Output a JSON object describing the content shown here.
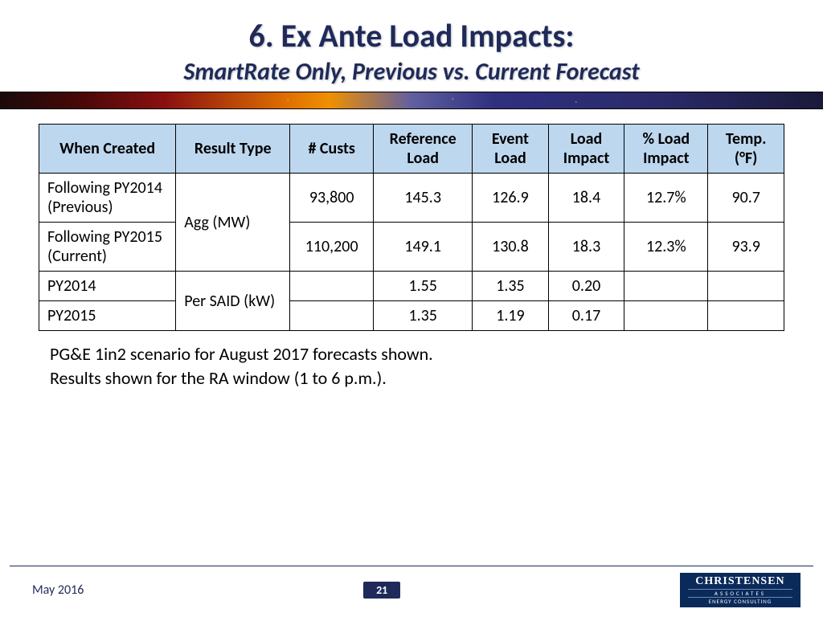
{
  "title": {
    "main": "6. Ex Ante Load Impacts:",
    "sub": "SmartRate Only, Previous vs. Current Forecast"
  },
  "colors": {
    "heading": "#1f2a5a",
    "table_header_bg": "#bdd7ee",
    "border": "#000000",
    "footer_bg": "#1f2a5a",
    "logo_bg": "#0a2a5a"
  },
  "table": {
    "columns": [
      "When Created",
      "Result Type",
      "# Custs",
      "Reference Load",
      "Event Load",
      "Load Impact",
      "% Load Impact",
      "Temp. (°F)"
    ],
    "rows": [
      {
        "when": "Following PY2014 (Previous)",
        "result": "Agg (MW)",
        "custs": "93,800",
        "ref": "145.3",
        "event": "126.9",
        "impact": "18.4",
        "pct": "12.7%",
        "temp": "90.7",
        "merge_result": 2
      },
      {
        "when": "Following PY2015 (Current)",
        "result": "",
        "custs": "110,200",
        "ref": "149.1",
        "event": "130.8",
        "impact": "18.3",
        "pct": "12.3%",
        "temp": "93.9"
      },
      {
        "when": "PY2014",
        "result": "Per SAID (kW)",
        "custs": "",
        "ref": "1.55",
        "event": "1.35",
        "impact": "0.20",
        "pct": "",
        "temp": "",
        "merge_result": 2
      },
      {
        "when": "PY2015",
        "result": "",
        "custs": "",
        "ref": "1.35",
        "event": "1.19",
        "impact": "0.17",
        "pct": "",
        "temp": ""
      }
    ],
    "col_widths_pct": [
      18,
      15,
      11,
      13,
      10,
      10,
      11,
      10
    ]
  },
  "notes": [
    "PG&E 1in2 scenario for August 2017 forecasts shown.",
    "Results shown for the RA window (1 to 6 p.m.)."
  ],
  "footer": {
    "date": "May 2016",
    "page": "21",
    "logo": {
      "l1": "CHRISTENSEN",
      "l2": "ASSOCIATES",
      "l3": "ENERGY CONSULTING"
    }
  }
}
